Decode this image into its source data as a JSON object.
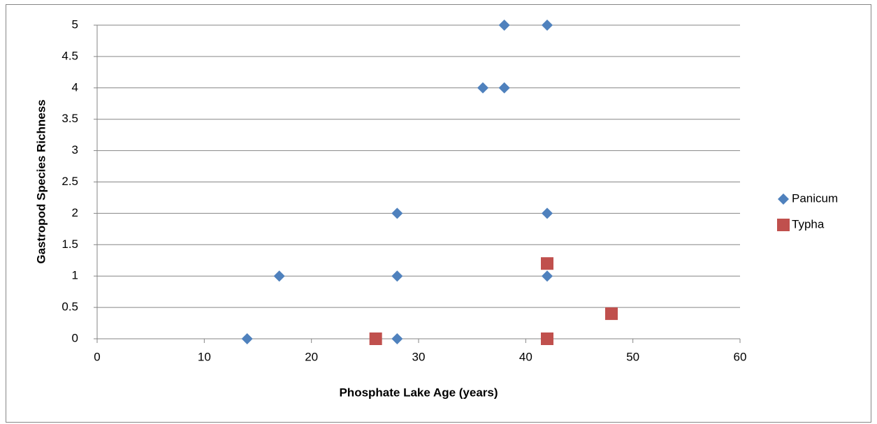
{
  "chart_data": {
    "type": "scatter",
    "xlabel": "Phosphate Lake Age (years)",
    "ylabel": "Gastropod Species Richness",
    "xlim": [
      0,
      60
    ],
    "xticks": [
      0,
      10,
      20,
      30,
      40,
      50,
      60
    ],
    "ylim": [
      0,
      5
    ],
    "yticks": [
      0,
      0.5,
      1,
      1.5,
      2,
      2.5,
      3,
      3.5,
      4,
      4.5,
      5
    ],
    "grid": true,
    "legend": "right",
    "series": [
      {
        "name": "Panicum",
        "color": "#4f81bd",
        "marker": "diamond",
        "x": [
          14,
          17,
          28,
          28,
          28,
          36,
          38,
          38,
          42,
          42,
          42
        ],
        "values": [
          0,
          1,
          2,
          1,
          0,
          4,
          4,
          5,
          5,
          2,
          1
        ]
      },
      {
        "name": "Typha",
        "color": "#c0504d",
        "marker": "square",
        "x": [
          26,
          42,
          42,
          48
        ],
        "values": [
          0,
          1.2,
          0,
          0.4
        ]
      }
    ]
  }
}
